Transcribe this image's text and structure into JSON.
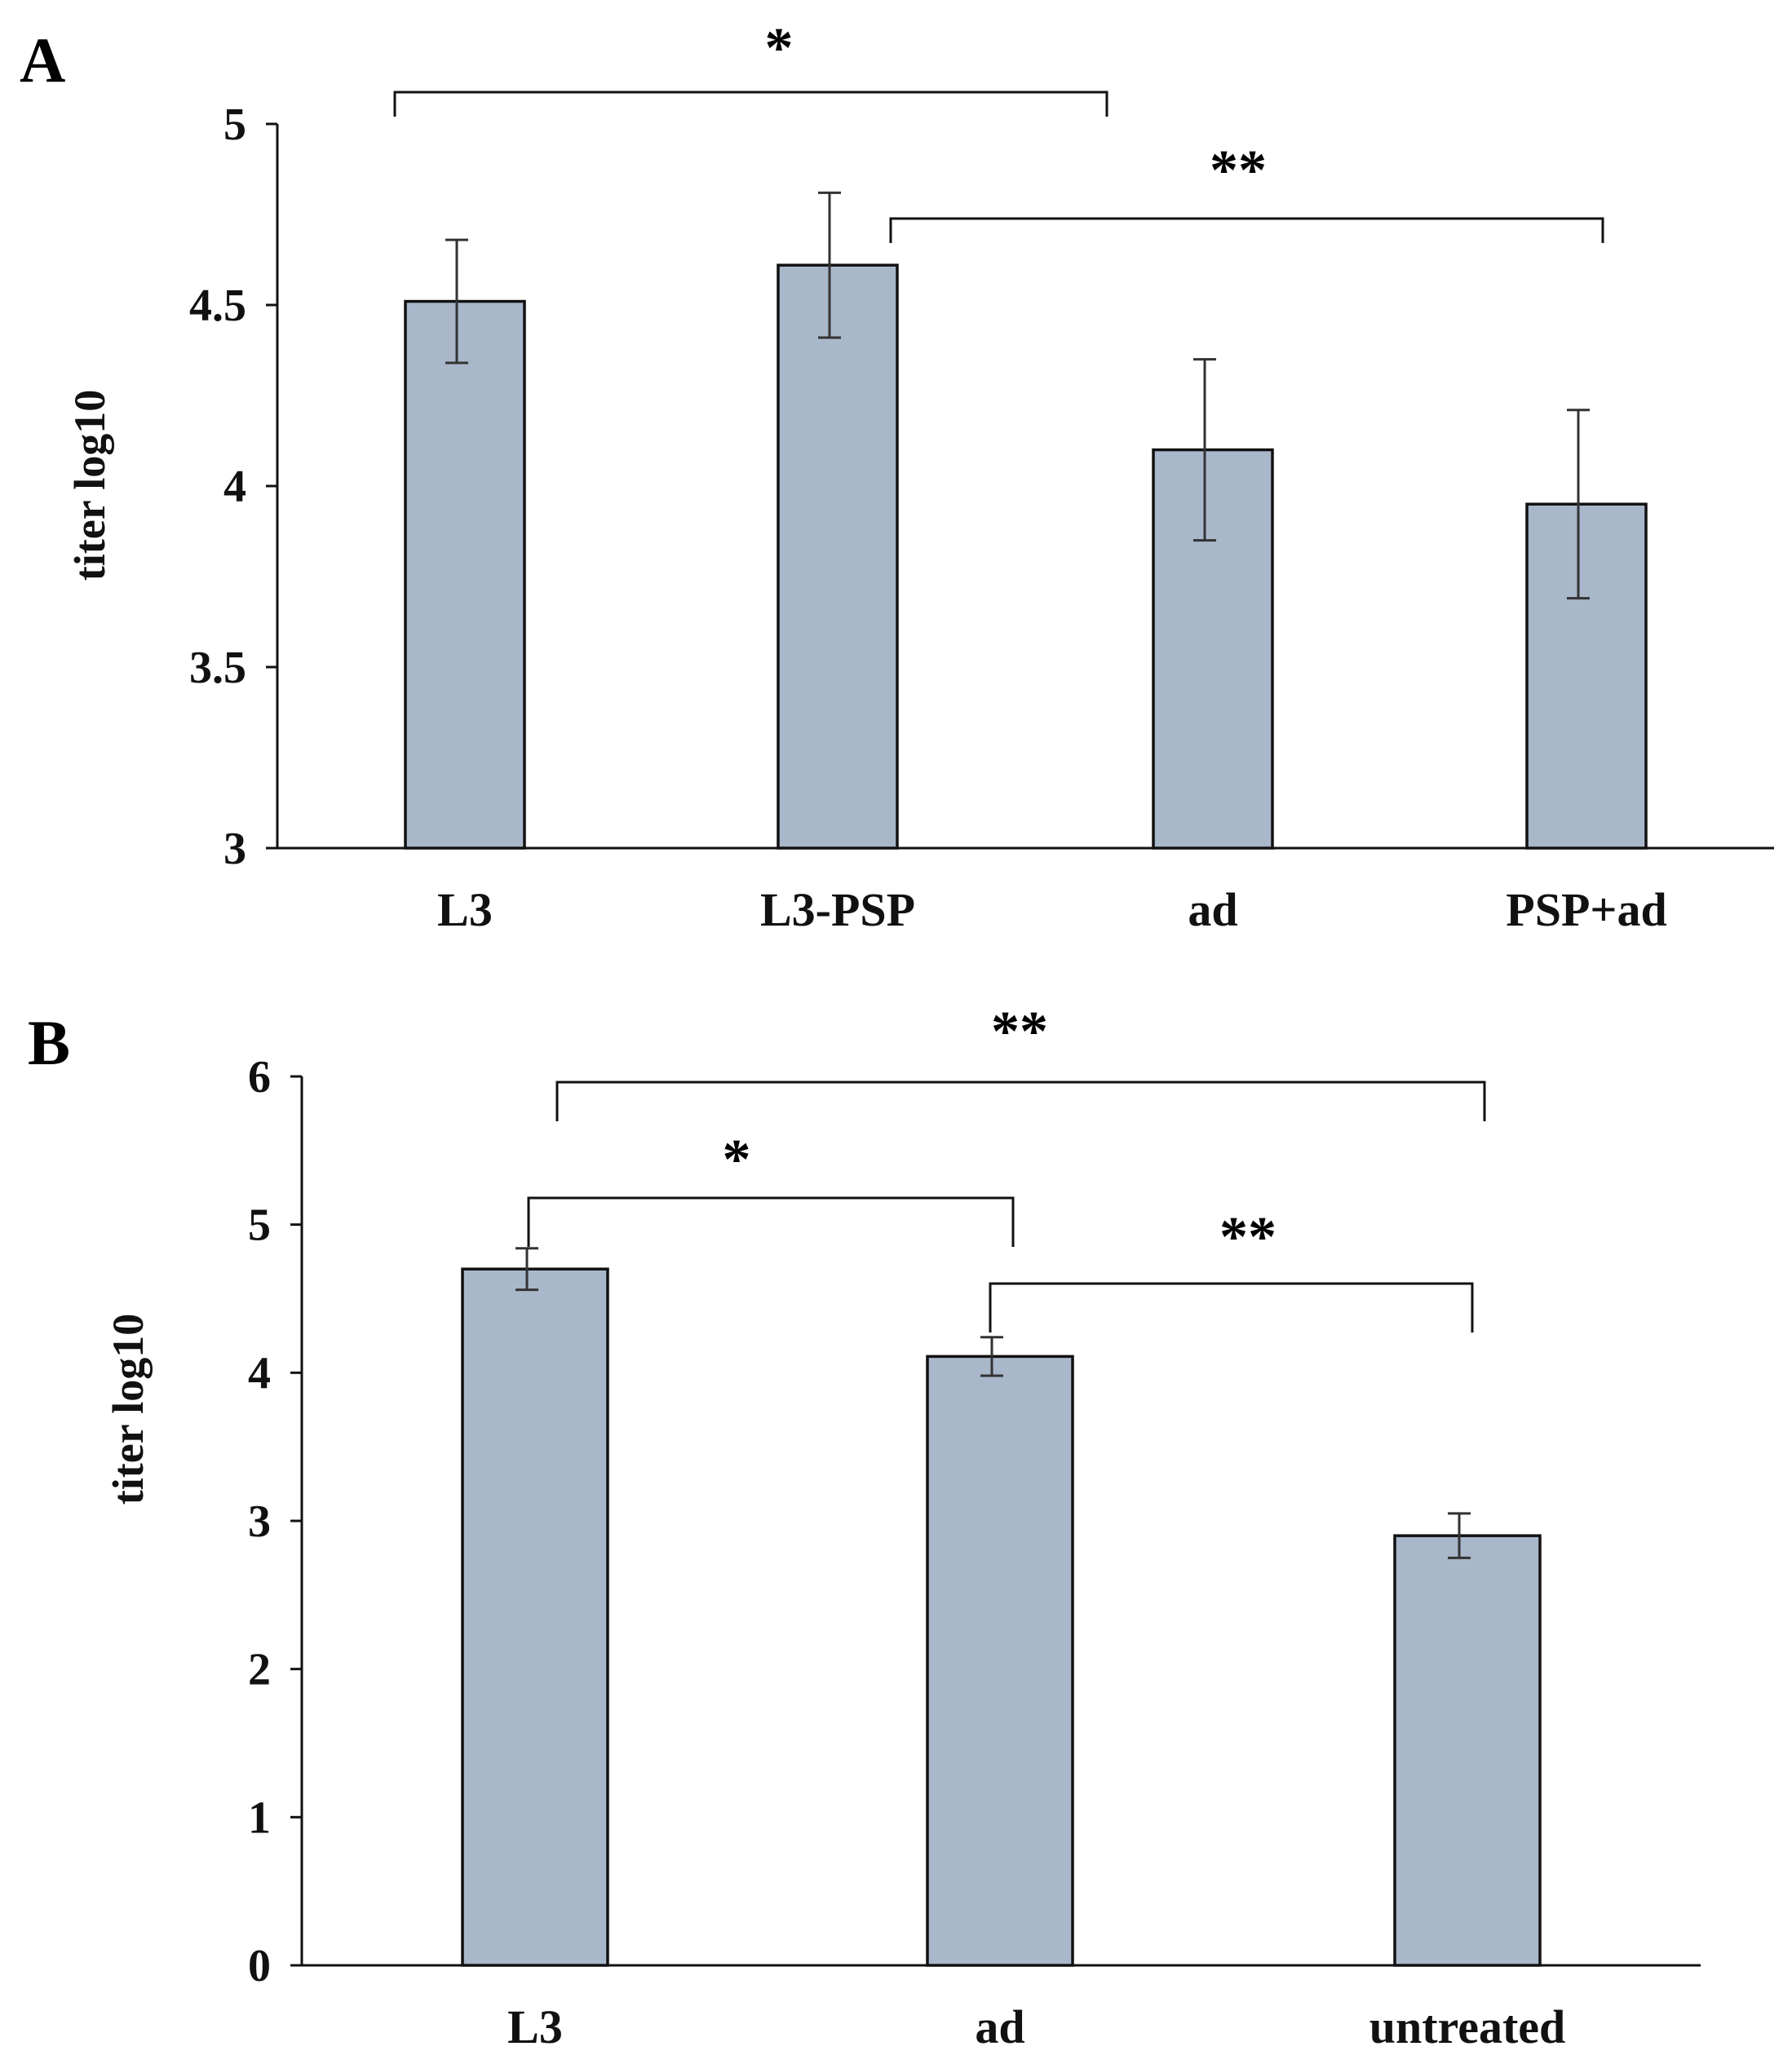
{
  "colors": {
    "bar_fill": "#a9b7cb",
    "axis": "#111111"
  },
  "chart_data": [
    {
      "panel": "A",
      "type": "bar",
      "ylabel": "titer log10",
      "ylim": [
        3,
        5
      ],
      "yticks": [
        {
          "value": 3,
          "label": "3"
        },
        {
          "value": 3.5,
          "label": "3.5"
        },
        {
          "value": 4,
          "label": "4"
        },
        {
          "value": 4.5,
          "label": "4.5"
        },
        {
          "value": 5,
          "label": "5"
        }
      ],
      "categories": [
        "L3",
        "L3-PSP",
        "ad",
        "PSP+ad"
      ],
      "values": [
        4.51,
        4.61,
        4.1,
        3.95
      ],
      "errors": [
        0.17,
        0.2,
        0.25,
        0.26
      ],
      "significance": [
        {
          "from": 0,
          "to": 2,
          "label": "*"
        },
        {
          "from": 1,
          "to": 3,
          "label": "**"
        }
      ]
    },
    {
      "panel": "B",
      "type": "bar",
      "ylabel": "titer log10",
      "ylim": [
        0,
        6
      ],
      "yticks": [
        {
          "value": 0,
          "label": "0"
        },
        {
          "value": 1,
          "label": "1"
        },
        {
          "value": 2,
          "label": "2"
        },
        {
          "value": 3,
          "label": "3"
        },
        {
          "value": 4,
          "label": "4"
        },
        {
          "value": 5,
          "label": "5"
        },
        {
          "value": 6,
          "label": "6"
        }
      ],
      "categories": [
        "L3",
        "ad",
        "untreated"
      ],
      "values": [
        4.7,
        4.11,
        2.9
      ],
      "errors": [
        0.14,
        0.13,
        0.15
      ],
      "significance": [
        {
          "from": 0,
          "to": 2,
          "label": "**"
        },
        {
          "from": 0,
          "to": 1,
          "label": "*"
        },
        {
          "from": 1,
          "to": 2,
          "label": "**"
        }
      ]
    }
  ]
}
